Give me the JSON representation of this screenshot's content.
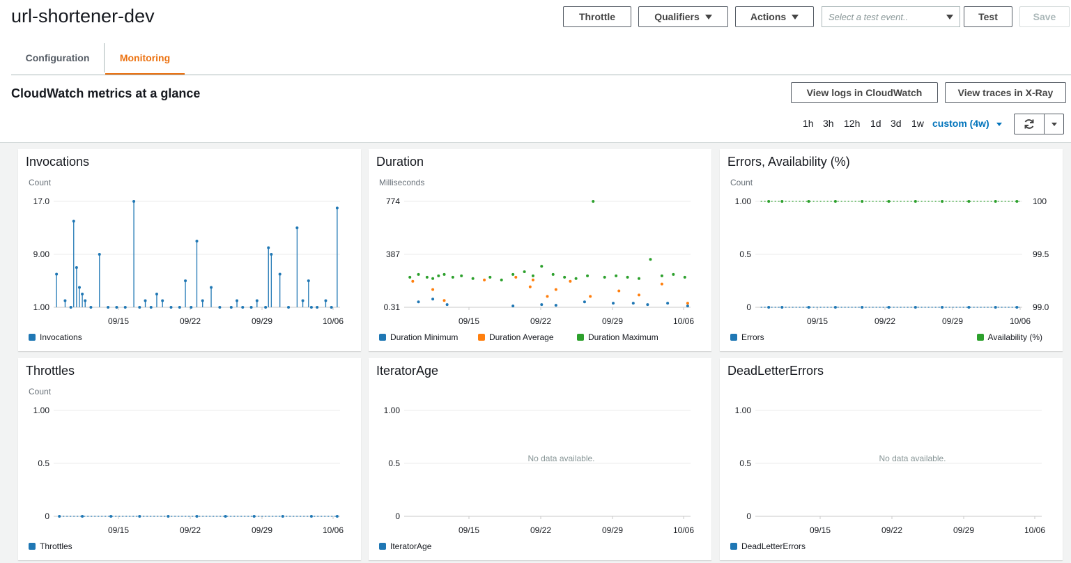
{
  "function_name": "url-shortener-dev",
  "header_buttons": {
    "throttle": "Throttle",
    "qualifiers": "Qualifiers",
    "actions": "Actions",
    "test_event_placeholder": "Select a test event..",
    "test": "Test",
    "save": "Save"
  },
  "tabs": [
    {
      "label": "Configuration",
      "active": false
    },
    {
      "label": "Monitoring",
      "active": true
    }
  ],
  "section": {
    "title": "CloudWatch metrics at a glance",
    "view_logs": "View logs in CloudWatch",
    "view_traces": "View traces in X-Ray",
    "time_ranges": [
      "1h",
      "3h",
      "12h",
      "1d",
      "3d",
      "1w"
    ],
    "custom_range": "custom (4w)"
  },
  "colors": {
    "accent": "#ec7211",
    "link": "#0073bb",
    "series_blue": "#1f77b4",
    "series_orange": "#ff7f0e",
    "series_green": "#2ca02c"
  },
  "panels": {
    "invocations": {
      "title": "Invocations",
      "unit": "Count",
      "y_ticks": [
        "17.0",
        "9.00",
        "1.00"
      ],
      "x_ticks": [
        "09/15",
        "09/22",
        "09/29",
        "10/06"
      ],
      "legend": [
        "Invocations"
      ]
    },
    "duration": {
      "title": "Duration",
      "unit": "Milliseconds",
      "y_ticks": [
        "774",
        "387",
        "0.31"
      ],
      "x_ticks": [
        "09/15",
        "09/22",
        "09/29",
        "10/06"
      ],
      "legend": [
        "Duration Minimum",
        "Duration Average",
        "Duration Maximum"
      ]
    },
    "errors": {
      "title": "Errors, Availability (%)",
      "unit": "Count",
      "y_ticks": [
        "1.00",
        "0.5",
        "0"
      ],
      "y2_ticks": [
        "100",
        "99.5",
        "99.0"
      ],
      "x_ticks": [
        "09/15",
        "09/22",
        "09/29",
        "10/06"
      ],
      "legend": [
        "Errors"
      ],
      "legend_right": "Availability (%)"
    },
    "throttles": {
      "title": "Throttles",
      "unit": "Count",
      "y_ticks": [
        "1.00",
        "0.5",
        "0"
      ],
      "x_ticks": [
        "09/15",
        "09/22",
        "09/29",
        "10/06"
      ],
      "legend": [
        "Throttles"
      ]
    },
    "iterator_age": {
      "title": "IteratorAge",
      "y_ticks": [
        "1.00",
        "0.5",
        "0"
      ],
      "x_ticks": [
        "09/15",
        "09/22",
        "09/29",
        "10/06"
      ],
      "legend": [
        "IteratorAge"
      ],
      "no_data": "No data available."
    },
    "dead_letter": {
      "title": "DeadLetterErrors",
      "y_ticks": [
        "1.00",
        "0.5",
        "0"
      ],
      "x_ticks": [
        "09/15",
        "09/22",
        "09/29",
        "10/06"
      ],
      "legend": [
        "DeadLetterErrors"
      ],
      "no_data": "No data available."
    }
  },
  "chart_data": [
    {
      "type": "scatter",
      "title": "Invocations",
      "ylabel": "Count",
      "ylim": [
        1,
        17
      ],
      "x_ticks": [
        "09/15",
        "09/22",
        "09/29",
        "10/06"
      ],
      "series": [
        {
          "name": "Invocations",
          "x": [
            0.01,
            0.04,
            0.06,
            0.07,
            0.08,
            0.09,
            0.1,
            0.11,
            0.13,
            0.16,
            0.19,
            0.22,
            0.25,
            0.28,
            0.3,
            0.32,
            0.34,
            0.36,
            0.38,
            0.41,
            0.44,
            0.46,
            0.48,
            0.5,
            0.52,
            0.55,
            0.58,
            0.62,
            0.64,
            0.66,
            0.69,
            0.71,
            0.74,
            0.75,
            0.76,
            0.79,
            0.82,
            0.85,
            0.87,
            0.89,
            0.9,
            0.92,
            0.95,
            0.97,
            0.99
          ],
          "y": [
            6,
            2,
            1,
            14,
            7,
            4,
            3,
            2,
            1,
            9,
            1,
            1,
            1,
            17,
            1,
            2,
            1,
            3,
            2,
            1,
            1,
            5,
            1,
            11,
            2,
            4,
            1,
            1,
            2,
            1,
            1,
            2,
            1,
            10,
            9,
            6,
            1,
            13,
            2,
            5,
            1,
            1,
            2,
            1,
            16
          ]
        }
      ]
    },
    {
      "type": "scatter",
      "title": "Duration",
      "ylabel": "Milliseconds",
      "ylim": [
        0.31,
        774
      ],
      "x_ticks": [
        "09/15",
        "09/22",
        "09/29",
        "10/06"
      ],
      "series": [
        {
          "name": "Duration Minimum",
          "x": [
            0.05,
            0.1,
            0.15,
            0.38,
            0.48,
            0.53,
            0.63,
            0.73,
            0.8,
            0.85,
            0.92,
            0.99
          ],
          "y": [
            40,
            60,
            20,
            10,
            20,
            15,
            40,
            30,
            30,
            20,
            30,
            10
          ]
        },
        {
          "name": "Duration Average",
          "x": [
            0.03,
            0.1,
            0.14,
            0.28,
            0.39,
            0.44,
            0.45,
            0.5,
            0.53,
            0.58,
            0.65,
            0.75,
            0.82,
            0.9,
            0.99
          ],
          "y": [
            190,
            130,
            50,
            200,
            220,
            150,
            200,
            80,
            130,
            190,
            80,
            120,
            90,
            170,
            30
          ]
        },
        {
          "name": "Duration Maximum",
          "x": [
            0.02,
            0.05,
            0.08,
            0.1,
            0.12,
            0.14,
            0.17,
            0.2,
            0.24,
            0.3,
            0.34,
            0.38,
            0.42,
            0.45,
            0.48,
            0.52,
            0.56,
            0.6,
            0.64,
            0.66,
            0.7,
            0.74,
            0.78,
            0.82,
            0.86,
            0.9,
            0.94,
            0.98
          ],
          "y": [
            220,
            240,
            220,
            210,
            230,
            240,
            220,
            230,
            210,
            220,
            200,
            240,
            260,
            230,
            300,
            240,
            220,
            210,
            230,
            774,
            220,
            230,
            220,
            210,
            350,
            230,
            240,
            220
          ]
        }
      ]
    },
    {
      "type": "scatter",
      "title": "Errors, Availability (%)",
      "ylabel": "Count",
      "ylim": [
        0,
        1
      ],
      "y2lim": [
        99.0,
        100
      ],
      "x_ticks": [
        "09/15",
        "09/22",
        "09/29",
        "10/06"
      ],
      "series": [
        {
          "name": "Errors",
          "x": [
            0.05,
            0.1,
            0.2,
            0.3,
            0.4,
            0.5,
            0.6,
            0.7,
            0.8,
            0.9,
            0.98
          ],
          "y": [
            0,
            0,
            0,
            0,
            0,
            0,
            0,
            0,
            0,
            0,
            0
          ]
        },
        {
          "name": "Availability (%)",
          "axis": "right",
          "x": [
            0.05,
            0.1,
            0.2,
            0.3,
            0.4,
            0.5,
            0.6,
            0.7,
            0.8,
            0.9,
            0.98
          ],
          "y": [
            100,
            100,
            100,
            100,
            100,
            100,
            100,
            100,
            100,
            100,
            100
          ]
        }
      ]
    },
    {
      "type": "scatter",
      "title": "Throttles",
      "ylabel": "Count",
      "ylim": [
        0,
        1
      ],
      "x_ticks": [
        "09/15",
        "09/22",
        "09/29",
        "10/06"
      ],
      "series": [
        {
          "name": "Throttles",
          "x": [
            0.02,
            0.1,
            0.2,
            0.3,
            0.4,
            0.5,
            0.6,
            0.7,
            0.8,
            0.9,
            0.99
          ],
          "y": [
            0,
            0,
            0,
            0,
            0,
            0,
            0,
            0,
            0,
            0,
            0
          ]
        }
      ]
    },
    {
      "type": "line",
      "title": "IteratorAge",
      "ylim": [
        0,
        1
      ],
      "x_ticks": [
        "09/15",
        "09/22",
        "09/29",
        "10/06"
      ],
      "series": [
        {
          "name": "IteratorAge",
          "x": [],
          "y": []
        }
      ]
    },
    {
      "type": "line",
      "title": "DeadLetterErrors",
      "ylim": [
        0,
        1
      ],
      "x_ticks": [
        "09/15",
        "09/22",
        "09/29",
        "10/06"
      ],
      "series": [
        {
          "name": "DeadLetterErrors",
          "x": [],
          "y": []
        }
      ]
    }
  ]
}
